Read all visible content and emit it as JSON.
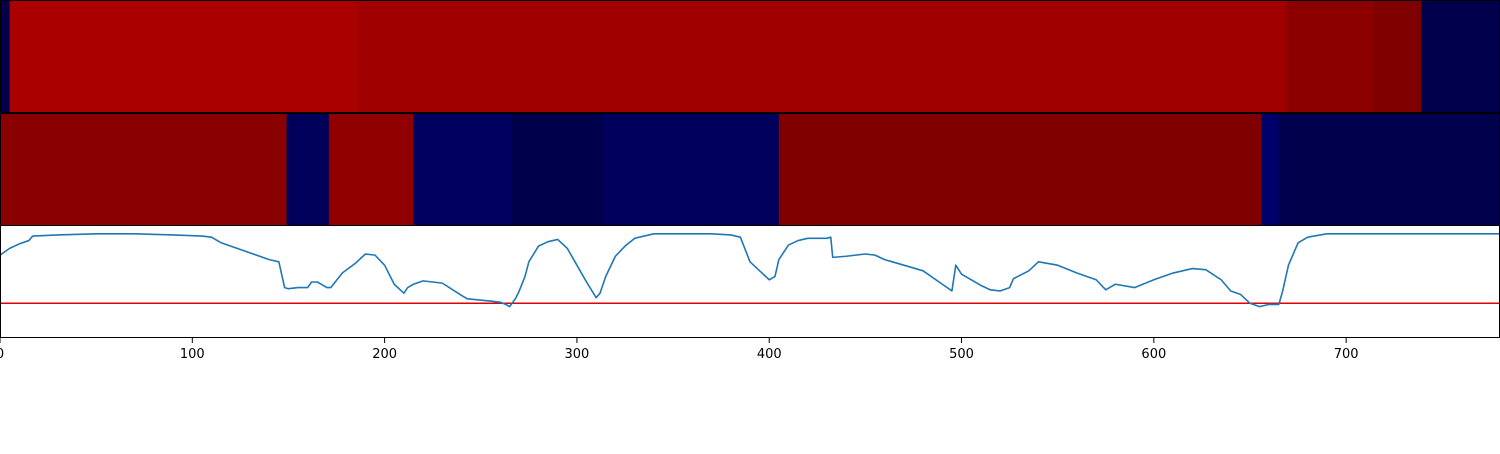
{
  "chart_data": {
    "type": "heatmap",
    "x_domain": [
      0,
      780
    ],
    "xticks": [
      0,
      100,
      200,
      300,
      400,
      500,
      600,
      700
    ],
    "xtick_labels": [
      "0",
      "100",
      "200",
      "300",
      "400",
      "500",
      "600",
      "700"
    ],
    "title": "",
    "xlabel": "",
    "ylabel": "",
    "grid": false,
    "colormap": "seismic",
    "segment_rows": [
      {
        "segments": [
          {
            "start": 0,
            "end": 5,
            "color": "#00004c"
          },
          {
            "start": 5,
            "end": 186,
            "color": "#ab0000"
          },
          {
            "start": 186,
            "end": 669,
            "color": "#a00000"
          },
          {
            "start": 669,
            "end": 714,
            "color": "#8c0000"
          },
          {
            "start": 714,
            "end": 739,
            "color": "#800000"
          },
          {
            "start": 739,
            "end": 780,
            "color": "#00004c"
          }
        ]
      },
      {
        "segments": [
          {
            "start": 0,
            "end": 149,
            "color": "#8a0000"
          },
          {
            "start": 149,
            "end": 171,
            "color": "#00005a"
          },
          {
            "start": 171,
            "end": 215,
            "color": "#900000"
          },
          {
            "start": 215,
            "end": 266,
            "color": "#00005e"
          },
          {
            "start": 266,
            "end": 313,
            "color": "#00004a"
          },
          {
            "start": 313,
            "end": 405,
            "color": "#00005c"
          },
          {
            "start": 405,
            "end": 656,
            "color": "#800000"
          },
          {
            "start": 656,
            "end": 665,
            "color": "#00006a"
          },
          {
            "start": 665,
            "end": 780,
            "color": "#00004c"
          }
        ]
      }
    ],
    "line_series": {
      "color": "#1f77b4",
      "y_domain": [
        0.0,
        1.0
      ],
      "x": [
        0,
        5,
        10,
        15,
        17,
        30,
        50,
        70,
        90,
        105,
        110,
        112,
        115,
        120,
        130,
        140,
        145,
        148,
        150,
        155,
        160,
        162,
        165,
        167,
        170,
        172,
        178,
        185,
        190,
        195,
        200,
        205,
        210,
        212,
        215,
        220,
        230,
        240,
        243,
        255,
        260,
        263,
        265,
        268,
        270,
        273,
        275,
        280,
        285,
        290,
        295,
        300,
        305,
        310,
        312,
        315,
        320,
        325,
        330,
        340,
        350,
        360,
        370,
        380,
        385,
        390,
        395,
        400,
        403,
        405,
        410,
        415,
        420,
        430,
        432,
        433,
        440,
        450,
        455,
        460,
        470,
        480,
        490,
        495,
        497,
        500,
        510,
        515,
        520,
        525,
        527,
        535,
        540,
        550,
        560,
        570,
        575,
        580,
        590,
        600,
        610,
        620,
        627,
        635,
        640,
        645,
        650,
        655,
        660,
        665,
        667,
        670,
        675,
        680,
        690,
        700,
        710,
        720,
        740,
        760,
        780
      ],
      "y": [
        0.74,
        0.8,
        0.84,
        0.87,
        0.91,
        0.92,
        0.93,
        0.93,
        0.92,
        0.91,
        0.9,
        0.88,
        0.85,
        0.82,
        0.76,
        0.7,
        0.68,
        0.45,
        0.44,
        0.45,
        0.45,
        0.5,
        0.5,
        0.48,
        0.45,
        0.45,
        0.58,
        0.67,
        0.75,
        0.74,
        0.65,
        0.48,
        0.4,
        0.45,
        0.48,
        0.51,
        0.49,
        0.38,
        0.35,
        0.33,
        0.32,
        0.3,
        0.28,
        0.35,
        0.42,
        0.55,
        0.68,
        0.82,
        0.86,
        0.88,
        0.8,
        0.65,
        0.5,
        0.36,
        0.4,
        0.55,
        0.73,
        0.82,
        0.89,
        0.93,
        0.93,
        0.93,
        0.93,
        0.92,
        0.9,
        0.68,
        0.6,
        0.52,
        0.55,
        0.7,
        0.83,
        0.87,
        0.89,
        0.89,
        0.9,
        0.72,
        0.73,
        0.75,
        0.74,
        0.7,
        0.65,
        0.6,
        0.48,
        0.42,
        0.65,
        0.57,
        0.47,
        0.43,
        0.42,
        0.45,
        0.53,
        0.6,
        0.68,
        0.65,
        0.58,
        0.52,
        0.43,
        0.48,
        0.45,
        0.52,
        0.58,
        0.62,
        0.61,
        0.52,
        0.42,
        0.39,
        0.31,
        0.28,
        0.3,
        0.3,
        0.42,
        0.65,
        0.85,
        0.9,
        0.93,
        0.93,
        0.93,
        0.93,
        0.93,
        0.93,
        0.93
      ]
    },
    "reference_line": {
      "y": 0.31,
      "color": "#e00000"
    }
  }
}
